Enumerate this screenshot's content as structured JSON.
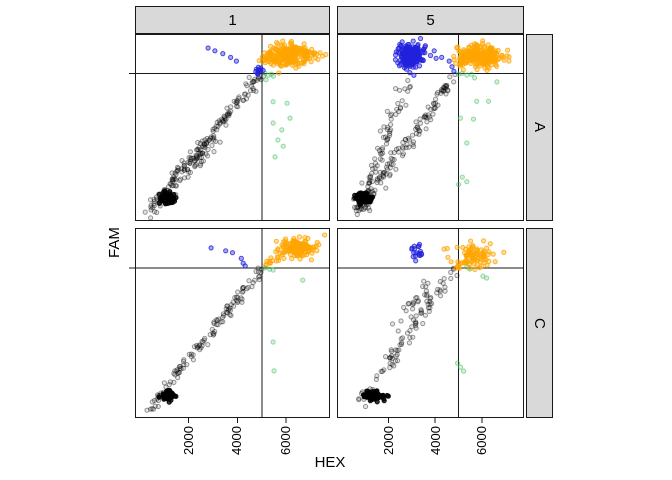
{
  "chart_data": {
    "type": "scatter",
    "title": "",
    "xlabel": "HEX",
    "ylabel": "FAM",
    "x_ticks": [
      2000,
      4000,
      6000
    ],
    "x_tick_labels": [
      "2000",
      "4000",
      "6000"
    ],
    "xlim": [
      -200,
      7800
    ],
    "y_axis_note": "no y tick labels shown; y coordinates below are fractions of panel height measured from the bottom",
    "col_facets": [
      "1",
      "5"
    ],
    "row_facets": [
      "A",
      "C"
    ],
    "grid": false,
    "legend_position": "none",
    "thresholds": {
      "x_value": 5000,
      "y_frac": 0.79
    },
    "colors": {
      "negative": "#000000",
      "fam_positive": "#2222DD",
      "hex_positive": "#46BE5A",
      "double_positive": "#FFA500",
      "strip_fill": "#D9D9D9",
      "frame": "#1A1A1A"
    },
    "panels": [
      {
        "col": "1",
        "row": "A",
        "rain": [
          {
            "x1": 0.04,
            "y1": 0.02,
            "x2": 0.645,
            "y2": 0.785,
            "n": 150,
            "spread": 0.014
          },
          {
            "x1": 0.1,
            "y1": 0.07,
            "x2": 0.4,
            "y2": 0.42,
            "n": 60,
            "spread": 0.022
          }
        ],
        "points": {
          "fam_positive": [
            [
              0.375,
              0.925
            ],
            [
              0.41,
              0.91
            ],
            [
              0.45,
              0.895
            ],
            [
              0.49,
              0.875
            ],
            [
              0.52,
              0.855
            ]
          ],
          "hex_positive": [
            [
              0.667,
              0.79
            ],
            [
              0.685,
              0.78
            ],
            [
              0.7,
              0.785
            ],
            [
              0.71,
              0.775
            ],
            [
              0.672,
              0.755
            ],
            [
              0.708,
              0.638
            ],
            [
              0.78,
              0.63
            ],
            [
              0.795,
              0.55
            ],
            [
              0.708,
              0.524
            ],
            [
              0.753,
              0.487
            ],
            [
              0.733,
              0.433
            ],
            [
              0.76,
              0.4
            ],
            [
              0.718,
              0.343
            ]
          ]
        },
        "blobs": [
          {
            "color": "double_positive",
            "cx": 0.8,
            "cy": 0.885,
            "sx": 0.065,
            "sy": 0.026,
            "n": 240
          },
          {
            "color": "double_positive",
            "cx": 0.7,
            "cy": 0.872,
            "sx": 0.02,
            "sy": 0.015,
            "n": 20
          },
          {
            "color": "fam_positive",
            "cx": 0.635,
            "cy": 0.8,
            "sx": 0.01,
            "sy": 0.01,
            "n": 12
          },
          {
            "color": "negative",
            "cx": 0.165,
            "cy": 0.12,
            "sx": 0.016,
            "sy": 0.013,
            "n": 80
          }
        ]
      },
      {
        "col": "5",
        "row": "A",
        "rain": [
          {
            "x1": 0.1,
            "y1": 0.04,
            "x2": 0.635,
            "y2": 0.78,
            "n": 130,
            "spread": 0.018
          },
          {
            "x1": 0.13,
            "y1": 0.07,
            "x2": 0.36,
            "y2": 0.73,
            "n": 80,
            "spread": 0.02
          }
        ],
        "points": {
          "fam_positive": [
            [
              0.47,
              0.9
            ],
            [
              0.5,
              0.885
            ],
            [
              0.53,
              0.87
            ],
            [
              0.56,
              0.875
            ],
            [
              0.6,
              0.855
            ],
            [
              0.615,
              0.825
            ],
            [
              0.625,
              0.8
            ],
            [
              0.47,
              0.93
            ],
            [
              0.52,
              0.91
            ]
          ],
          "hex_positive": [
            [
              0.65,
              0.785
            ],
            [
              0.67,
              0.79
            ],
            [
              0.695,
              0.78
            ],
            [
              0.72,
              0.785
            ],
            [
              0.736,
              0.765
            ],
            [
              0.855,
              0.744
            ],
            [
              0.747,
              0.64
            ],
            [
              0.81,
              0.64
            ],
            [
              0.66,
              0.55
            ],
            [
              0.73,
              0.545
            ],
            [
              0.694,
              0.417
            ],
            [
              0.67,
              0.235
            ],
            [
              0.694,
              0.21
            ],
            [
              0.65,
              0.195
            ]
          ]
        },
        "blobs": [
          {
            "color": "fam_positive",
            "cx": 0.39,
            "cy": 0.885,
            "sx": 0.032,
            "sy": 0.03,
            "n": 200
          },
          {
            "color": "double_positive",
            "cx": 0.775,
            "cy": 0.885,
            "sx": 0.06,
            "sy": 0.028,
            "n": 220
          },
          {
            "color": "double_positive",
            "cx": 0.67,
            "cy": 0.855,
            "sx": 0.025,
            "sy": 0.02,
            "n": 25
          },
          {
            "color": "negative",
            "cx": 0.145,
            "cy": 0.12,
            "sx": 0.022,
            "sy": 0.013,
            "n": 90
          }
        ]
      },
      {
        "col": "1",
        "row": "C",
        "rain": [
          {
            "x1": 0.06,
            "y1": 0.03,
            "x2": 0.65,
            "y2": 0.785,
            "n": 120,
            "spread": 0.013
          },
          {
            "x1": 0.665,
            "y1": 0.8,
            "x2": 0.78,
            "y2": 0.875,
            "n": 18,
            "spread": 0.01,
            "color": "double_positive"
          }
        ],
        "points": {
          "fam_positive": [
            [
              0.39,
              0.895
            ],
            [
              0.465,
              0.88
            ],
            [
              0.5,
              0.87
            ],
            [
              0.545,
              0.84
            ],
            [
              0.555,
              0.815
            ],
            [
              0.565,
              0.8
            ]
          ],
          "hex_positive": [
            [
              0.665,
              0.79
            ],
            [
              0.69,
              0.783
            ],
            [
              0.708,
              0.779
            ],
            [
              0.86,
              0.726
            ],
            [
              0.708,
              0.4
            ],
            [
              0.713,
              0.248
            ]
          ]
        },
        "blobs": [
          {
            "color": "double_positive",
            "cx": 0.835,
            "cy": 0.895,
            "sx": 0.045,
            "sy": 0.022,
            "n": 170
          },
          {
            "color": "negative",
            "cx": 0.17,
            "cy": 0.12,
            "sx": 0.015,
            "sy": 0.012,
            "n": 70
          }
        ]
      },
      {
        "col": "5",
        "row": "C",
        "rain": [
          {
            "x1": 0.1,
            "y1": 0.05,
            "x2": 0.63,
            "y2": 0.78,
            "n": 85,
            "spread": 0.016
          },
          {
            "x1": 0.3,
            "y1": 0.45,
            "x2": 0.5,
            "y2": 0.72,
            "n": 25,
            "spread": 0.02
          },
          {
            "x1": 0.645,
            "y1": 0.79,
            "x2": 0.7,
            "y2": 0.83,
            "n": 10,
            "spread": 0.008,
            "color": "double_positive"
          }
        ],
        "points": {
          "fam_positive": [],
          "hex_positive": [
            [
              0.694,
              0.795
            ],
            [
              0.71,
              0.784
            ],
            [
              0.78,
              0.747
            ],
            [
              0.8,
              0.737
            ],
            [
              0.645,
              0.289
            ],
            [
              0.661,
              0.268
            ],
            [
              0.677,
              0.247
            ]
          ]
        },
        "blobs": [
          {
            "color": "fam_positive",
            "cx": 0.425,
            "cy": 0.875,
            "sx": 0.016,
            "sy": 0.02,
            "n": 18
          },
          {
            "color": "double_positive",
            "cx": 0.74,
            "cy": 0.86,
            "sx": 0.05,
            "sy": 0.032,
            "n": 80
          },
          {
            "color": "negative",
            "cx": 0.195,
            "cy": 0.115,
            "sx": 0.024,
            "sy": 0.013,
            "n": 80
          }
        ]
      }
    ]
  }
}
